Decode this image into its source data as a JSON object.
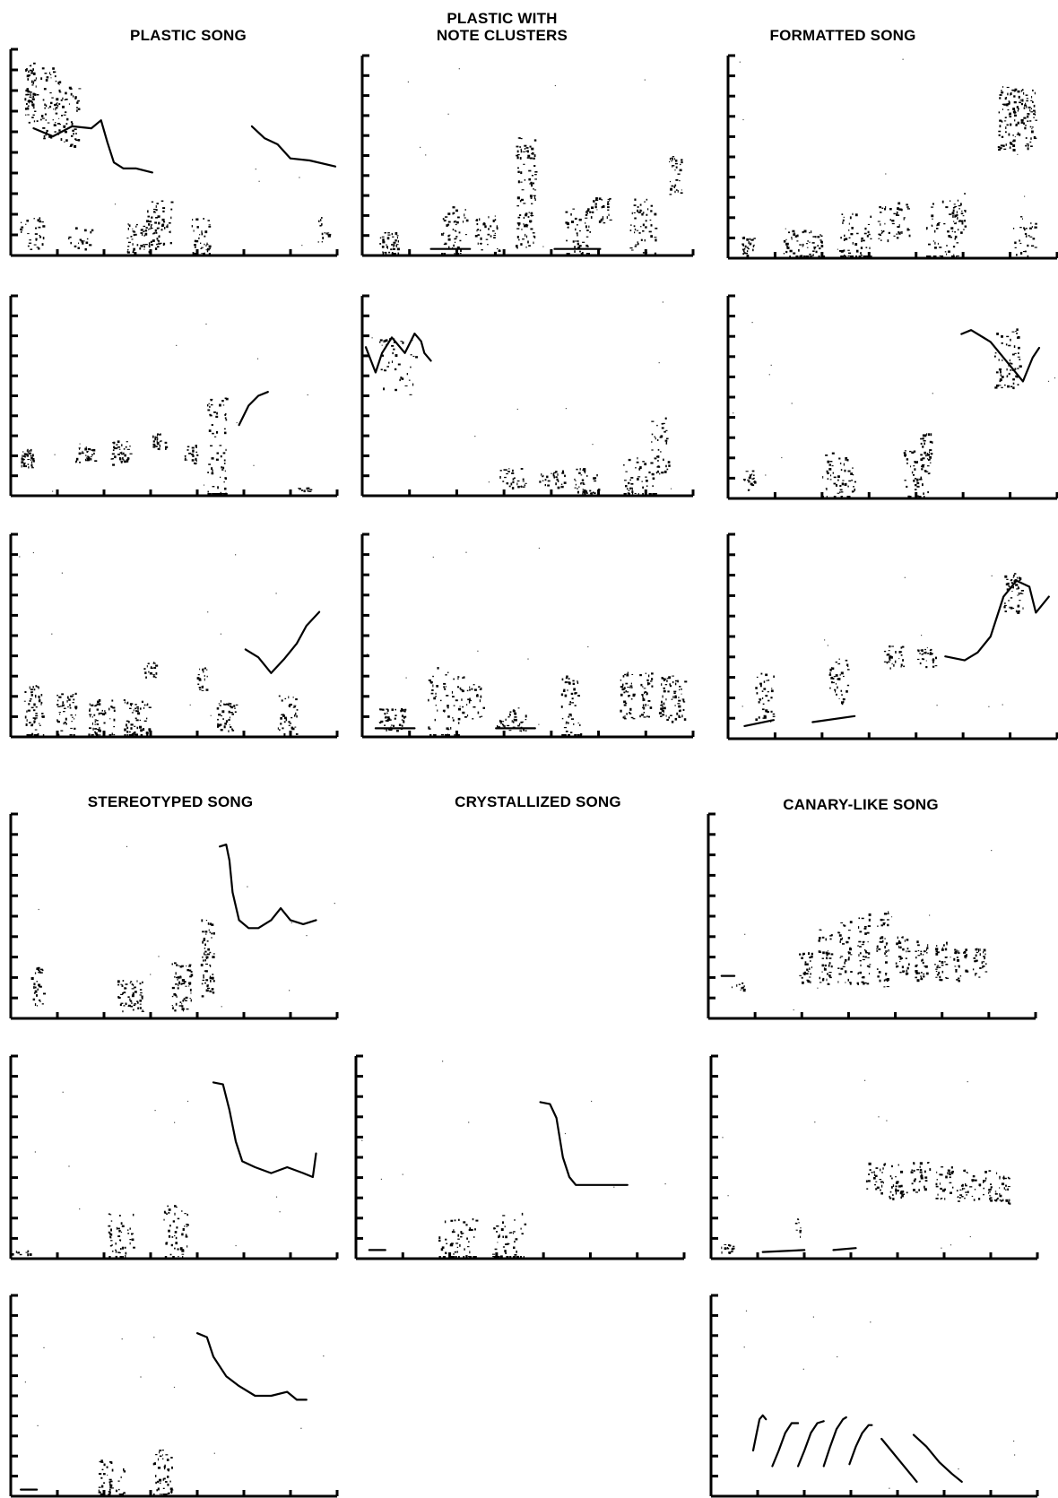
{
  "titles": {
    "plastic": "PLASTIC SONG",
    "clusters_line1": "PLASTIC WITH",
    "clusters_line2": "NOTE CLUSTERS",
    "formatted": "FORMATTED SONG",
    "stereotyped": "STEREOTYPED SONG",
    "crystallized": "CRYSTALLIZED SONG",
    "canary": "CANARY-LIKE SONG"
  },
  "colors": {
    "ink": "#000000",
    "paper": "#ffffff"
  },
  "panels": [
    {
      "id": "plastic-1",
      "group": "plastic"
    },
    {
      "id": "clusters-1",
      "group": "clusters"
    },
    {
      "id": "formatted-1",
      "group": "formatted"
    },
    {
      "id": "plastic-2",
      "group": "plastic"
    },
    {
      "id": "clusters-2",
      "group": "clusters"
    },
    {
      "id": "formatted-2",
      "group": "formatted"
    },
    {
      "id": "plastic-3",
      "group": "plastic"
    },
    {
      "id": "clusters-3",
      "group": "clusters"
    },
    {
      "id": "formatted-3",
      "group": "formatted"
    },
    {
      "id": "stereotyped-1",
      "group": "stereotyped"
    },
    {
      "id": "canary-1",
      "group": "canary"
    },
    {
      "id": "stereotyped-2",
      "group": "stereotyped"
    },
    {
      "id": "crystallized-1",
      "group": "crystallized"
    },
    {
      "id": "canary-2",
      "group": "canary"
    },
    {
      "id": "stereotyped-3",
      "group": "stereotyped"
    },
    {
      "id": "canary-3",
      "group": "canary"
    }
  ]
}
